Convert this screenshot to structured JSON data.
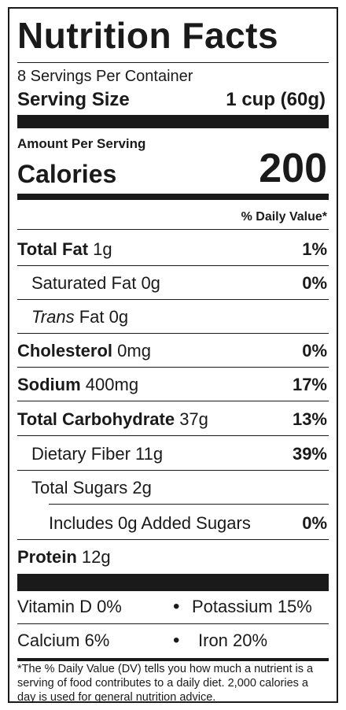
{
  "title": "Nutrition Facts",
  "servings_per_container": "8 Servings Per Container",
  "serving_size": {
    "label": "Serving Size",
    "value": "1 cup (60g)"
  },
  "amount_per_serving": "Amount Per Serving",
  "calories": {
    "label": "Calories",
    "value": "200"
  },
  "daily_value_header": "% Daily Value*",
  "nutrients": [
    {
      "name": "Total Fat",
      "amount": "1g",
      "dv": "1%"
    },
    {
      "name": "Saturated Fat",
      "amount": "0g",
      "dv": "0%"
    },
    {
      "name": "Trans",
      "name_rest": "Fat",
      "amount": "0g",
      "dv": ""
    },
    {
      "name": "Cholesterol",
      "amount": "0mg",
      "dv": "0%"
    },
    {
      "name": "Sodium",
      "amount": "400mg",
      "dv": "17%"
    },
    {
      "name": "Total Carbohydrate",
      "amount": "37g",
      "dv": "13%"
    },
    {
      "name": "Dietary Fiber",
      "amount": "11g",
      "dv": "39%"
    },
    {
      "name": "Total Sugars",
      "amount": "2g",
      "dv": ""
    },
    {
      "name": "Includes 0g Added Sugars",
      "amount": "",
      "dv": "0%"
    },
    {
      "name": "Protein",
      "amount": "12g",
      "dv": ""
    }
  ],
  "vitamins": [
    {
      "left": "Vitamin D 0%",
      "right": "Potassium 15%"
    },
    {
      "left": "Calcium 6%",
      "right": "Iron 20%"
    }
  ],
  "bullet": "•",
  "footnote": "*The % Daily Value (DV) tells you how much a nutrient is a serving of food contributes to a daily diet. 2,000 calories a day is used for general nutrition advice."
}
